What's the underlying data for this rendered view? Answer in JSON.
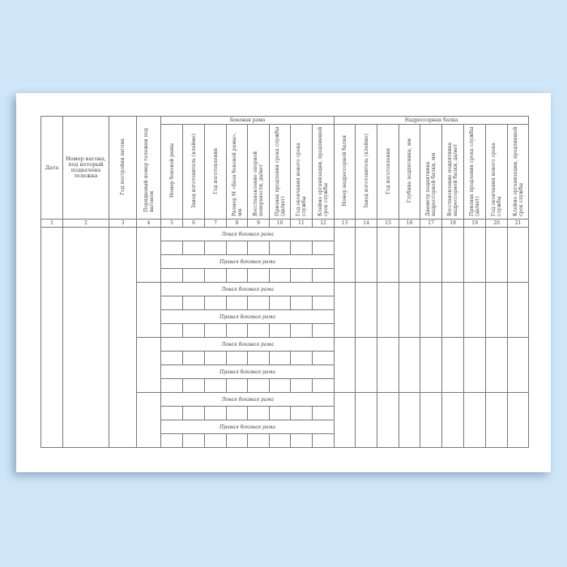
{
  "background_color": "#cfe6f8",
  "form": {
    "columns_standalone": [
      {
        "num": "1",
        "label": "Дата"
      },
      {
        "num": "2",
        "label": "Номер вагона, под который подкачена тележка"
      },
      {
        "num": "3",
        "label": "Год постройки вагона"
      },
      {
        "num": "4",
        "label": "Порядковый номер тележки под вагоном"
      }
    ],
    "group_side_frame": {
      "title": "Боковая рама",
      "columns": [
        {
          "num": "5",
          "label": "Номер боковой рамы"
        },
        {
          "num": "6",
          "label": "Завод изготовитель (клеймо)"
        },
        {
          "num": "7",
          "label": "Год изготовления"
        },
        {
          "num": "8",
          "label": "Размер М «База боковой рамы», мм"
        },
        {
          "num": "9",
          "label": "Восстановление опорной поверхности, да/нет"
        },
        {
          "num": "10",
          "label": "Признак продления срока службы (да/нет)"
        },
        {
          "num": "11",
          "label": "Год окончания нового срока службы"
        },
        {
          "num": "12",
          "label": "Клеймо организации, продлившей срок службы"
        }
      ]
    },
    "group_bolster": {
      "title": "Надрессорная балка",
      "columns": [
        {
          "num": "13",
          "label": "Номер надрессорной балки"
        },
        {
          "num": "14",
          "label": "Завод изготовитель (клеймо)"
        },
        {
          "num": "15",
          "label": "Год изготовления"
        },
        {
          "num": "16",
          "label": "Глубина подпятника, мм"
        },
        {
          "num": "17",
          "label": "Диаметр подпятника надрессорной балки, мм"
        },
        {
          "num": "18",
          "label": "Восстановление подпятника надрессорной балки, да/нет"
        },
        {
          "num": "19",
          "label": "Признак продления срока службы (да/нет)"
        },
        {
          "num": "20",
          "label": "Год окончания нового срока службы"
        },
        {
          "num": "21",
          "label": "Клеймо организации, продлившей срок службы"
        }
      ]
    },
    "body_groups": [
      {
        "left_label": "Левая боковая рама",
        "right_label": "Правая боковая рама"
      },
      {
        "left_label": "Левая боковая рама",
        "right_label": "Правая боковая рама"
      },
      {
        "left_label": "Левая боковая рама",
        "right_label": "Правая боковая рама"
      },
      {
        "left_label": "Левая боковая рама",
        "right_label": "Правая боковая рама"
      }
    ]
  }
}
